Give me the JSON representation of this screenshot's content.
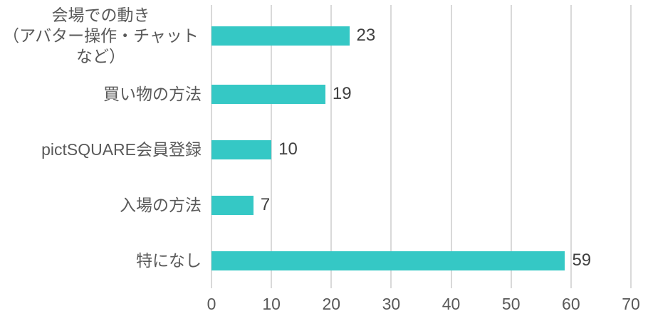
{
  "chart_data": {
    "type": "bar",
    "orientation": "horizontal",
    "title": "",
    "xlabel": "",
    "ylabel": "",
    "categories": [
      "会場での動き\n（アバター操作・チャットなど）",
      "買い物の方法",
      "pictSQUARE会員登録",
      "入場の方法",
      "特になし"
    ],
    "values": [
      23,
      19,
      10,
      7,
      59
    ],
    "xlim": [
      0,
      70
    ],
    "xticks": [
      0,
      10,
      20,
      30,
      40,
      50,
      60,
      70
    ],
    "grid": true,
    "legend": false,
    "colors": {
      "bar": "#35c8c5",
      "gridline": "#d9d9d9",
      "category_label": "#595959",
      "tick_label": "#595959",
      "value_label": "#404040",
      "background": "#ffffff"
    }
  }
}
